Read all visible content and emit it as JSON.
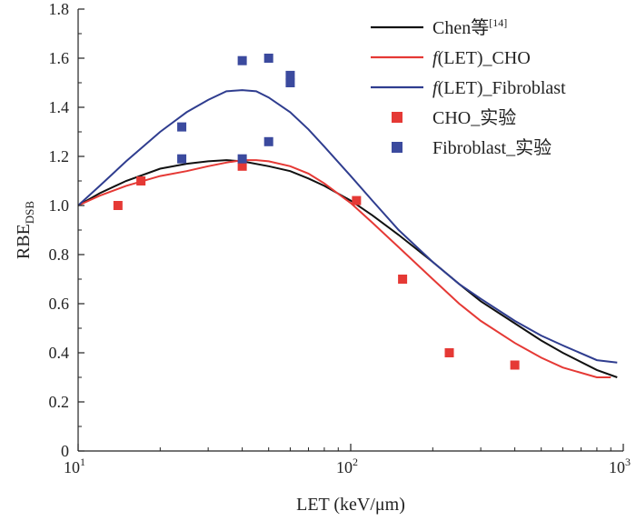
{
  "chart_data": {
    "type": "scatter",
    "xlabel": "LET (keV/μm)",
    "ylabel": "RBE",
    "ylabel_sub": "DSB",
    "xscale": "log",
    "xlim": [
      10,
      1000
    ],
    "ylim": [
      0,
      1.8
    ],
    "x_ticks": [
      {
        "value": 10,
        "base": "10",
        "exp": "1"
      },
      {
        "value": 100,
        "base": "10",
        "exp": "2"
      },
      {
        "value": 1000,
        "base": "10",
        "exp": "3"
      }
    ],
    "y_ticks": [
      "0",
      "0.2",
      "0.4",
      "0.6",
      "0.8",
      "1.0",
      "1.2",
      "1.4",
      "1.6",
      "1.8"
    ],
    "grid": false,
    "legend_position": "top-right",
    "series": [
      {
        "name": "Chen等",
        "name_sup": "[14]",
        "kind": "line",
        "color": "#111111",
        "x": [
          10,
          12,
          15,
          20,
          25,
          30,
          35,
          40,
          50,
          60,
          70,
          80,
          100,
          120,
          150,
          200,
          250,
          300,
          400,
          500,
          600,
          800,
          950
        ],
        "y": [
          1.0,
          1.05,
          1.1,
          1.15,
          1.17,
          1.18,
          1.185,
          1.18,
          1.16,
          1.14,
          1.11,
          1.08,
          1.02,
          0.96,
          0.88,
          0.77,
          0.68,
          0.61,
          0.52,
          0.45,
          0.4,
          0.33,
          0.3
        ]
      },
      {
        "name_prefix": "f",
        "name": "(LET)_CHO",
        "kind": "line",
        "color": "#e53935",
        "x": [
          10,
          12,
          15,
          20,
          25,
          30,
          35,
          40,
          45,
          50,
          60,
          70,
          80,
          100,
          120,
          150,
          200,
          250,
          300,
          400,
          500,
          600,
          800,
          900
        ],
        "y": [
          1.0,
          1.04,
          1.08,
          1.12,
          1.14,
          1.16,
          1.175,
          1.185,
          1.185,
          1.18,
          1.16,
          1.13,
          1.09,
          1.01,
          0.93,
          0.83,
          0.7,
          0.6,
          0.53,
          0.44,
          0.38,
          0.34,
          0.3,
          0.3
        ]
      },
      {
        "name_prefix": "f",
        "name": "(LET)_Fibroblast",
        "kind": "line",
        "color": "#2f3d8f",
        "x": [
          10,
          12,
          15,
          20,
          25,
          30,
          35,
          40,
          45,
          50,
          60,
          70,
          80,
          100,
          120,
          150,
          200,
          250,
          300,
          400,
          500,
          600,
          800,
          950
        ],
        "y": [
          1.0,
          1.08,
          1.18,
          1.3,
          1.38,
          1.43,
          1.465,
          1.47,
          1.465,
          1.44,
          1.38,
          1.31,
          1.24,
          1.12,
          1.02,
          0.9,
          0.77,
          0.68,
          0.62,
          0.53,
          0.47,
          0.43,
          0.37,
          0.36
        ]
      },
      {
        "name": "CHO_实验",
        "kind": "scatter",
        "color": "#e53935",
        "x": [
          14,
          17,
          40,
          105,
          155,
          230,
          400
        ],
        "y": [
          1.0,
          1.1,
          1.16,
          1.02,
          0.7,
          0.4,
          0.35
        ]
      },
      {
        "name": "Fibroblast_实验",
        "kind": "scatter",
        "color": "#3b4a9e",
        "x": [
          24,
          24,
          40,
          40,
          50,
          50,
          60,
          60
        ],
        "y": [
          1.32,
          1.19,
          1.59,
          1.19,
          1.6,
          1.26,
          1.53,
          1.5
        ]
      }
    ]
  }
}
